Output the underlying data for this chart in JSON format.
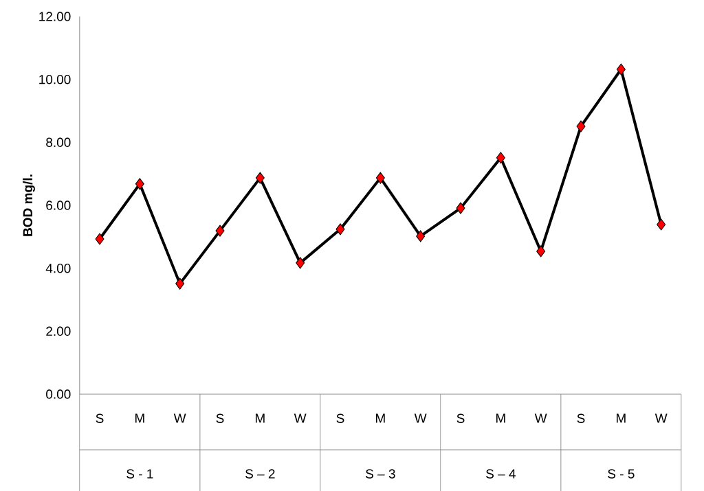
{
  "chart_data": {
    "type": "line",
    "ylabel": "BOD mg/l.",
    "categories": [
      "S",
      "M",
      "W",
      "S",
      "M",
      "W",
      "S",
      "M",
      "W",
      "S",
      "M",
      "W",
      "S",
      "M",
      "W"
    ],
    "series": [
      {
        "color": "#000000",
        "colors": [
          "#ff0000",
          "#ff0000",
          "#ff0000",
          "#ff0000",
          "#ff0000",
          "#ff0000",
          "#ff0000",
          "#ff0000",
          "#ff0000",
          "#ff0000",
          "#ff0000",
          "#ff0000",
          "#ff0000",
          "#ff0000",
          "#ff0000"
        ],
        "values": [
          4.93,
          6.68,
          3.51,
          5.19,
          6.87,
          4.17,
          5.24,
          6.87,
          5.02,
          5.91,
          7.51,
          4.54,
          8.51,
          10.32,
          5.39
        ]
      }
    ],
    "annotations": [
      "S - 1",
      "S – 2",
      "S – 3",
      "S – 4",
      "S - 5"
    ],
    "ylim": [
      0,
      12
    ],
    "yticks": [
      {
        "value": 0,
        "label": "0.00"
      },
      {
        "value": 2,
        "label": "2.00"
      },
      {
        "value": 4,
        "label": "4.00"
      },
      {
        "value": 6,
        "label": "6.00"
      },
      {
        "value": 8,
        "label": "8.00"
      },
      {
        "value": 10,
        "label": "10.00"
      },
      {
        "value": 12,
        "label": "12.00"
      }
    ],
    "marker": "diamond",
    "line_style": "solid"
  }
}
